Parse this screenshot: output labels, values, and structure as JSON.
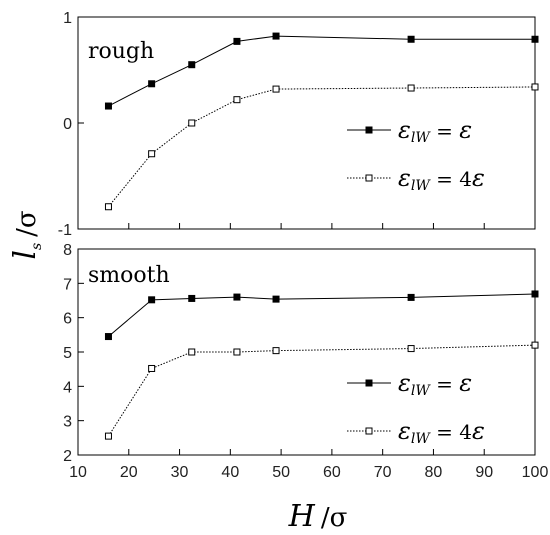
{
  "chart_data": [
    {
      "type": "line",
      "panel_label": "rough",
      "x": [
        16,
        24.5,
        32.4,
        41.3,
        49,
        75.6,
        100
      ],
      "series": [
        {
          "name": "ε_lw = ε",
          "values": [
            0.16,
            0.37,
            0.55,
            0.77,
            0.82,
            0.79,
            0.79
          ],
          "style": "solid-filled-square"
        },
        {
          "name": "ε_lw = 4ε",
          "values": [
            -0.79,
            -0.29,
            0.0,
            0.22,
            0.32,
            0.33,
            0.34
          ],
          "style": "dotted-open-square"
        }
      ],
      "ylim": [
        -1,
        1
      ],
      "yticks": [
        -1,
        0,
        1
      ],
      "legend": [
        {
          "eps": "ε",
          "sub": "lW",
          "eq": " = ",
          "rhs": "ε"
        },
        {
          "eps": "ε",
          "sub": "lW",
          "eq": " = 4",
          "rhs": "ε"
        }
      ],
      "legend_position": "right-center"
    },
    {
      "type": "line",
      "panel_label": "smooth",
      "x": [
        16,
        24.5,
        32.4,
        41.3,
        49,
        75.6,
        100
      ],
      "series": [
        {
          "name": "ε_lw = ε",
          "values": [
            5.45,
            6.52,
            6.56,
            6.6,
            6.54,
            6.59,
            6.69
          ],
          "style": "solid-filled-square"
        },
        {
          "name": "ε_lw = 4ε",
          "values": [
            2.55,
            4.52,
            5.0,
            5.0,
            5.04,
            5.1,
            5.2
          ],
          "style": "dotted-open-square"
        }
      ],
      "ylim": [
        2,
        8
      ],
      "yticks": [
        2,
        3,
        4,
        5,
        6,
        7,
        8
      ],
      "legend": [
        {
          "eps": "ε",
          "sub": "lW",
          "eq": " = ",
          "rhs": "ε"
        },
        {
          "eps": "ε",
          "sub": "lW",
          "eq": " = 4",
          "rhs": "ε"
        }
      ],
      "legend_position": "right-bottom"
    }
  ],
  "x_axis": {
    "xlim": [
      10,
      100
    ],
    "xticks": [
      10,
      20,
      30,
      40,
      50,
      60,
      70,
      80,
      90,
      100
    ],
    "label_symbol": "H",
    "label_unit": "σ"
  },
  "y_axis": {
    "label_symbol": "l",
    "label_sub": "s",
    "label_unit": "σ"
  },
  "colors": {
    "line": "#000000",
    "background": "#ffffff"
  }
}
